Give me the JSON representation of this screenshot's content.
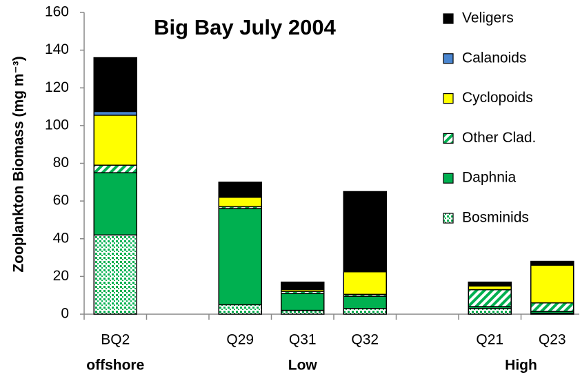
{
  "chart_data": {
    "type": "stacked_bar",
    "title": "Big Bay July 2004",
    "y_label": "Zooplankton Biomass (mg m⁻³)",
    "categories": [
      "BQ2",
      null,
      "Q29",
      "Q31",
      "Q32",
      null,
      "Q21",
      "Q23"
    ],
    "groups": [
      {
        "label": "offshore",
        "first": "BQ2",
        "last": "BQ2"
      },
      {
        "label": "Low",
        "first": "Q29",
        "last": "Q32"
      },
      {
        "label": "High",
        "first": "Q21",
        "last": "Q23"
      }
    ],
    "series": [
      {
        "name": "Bosminids",
        "color": "#00b050",
        "pattern": "dots",
        "values": [
          42,
          null,
          5,
          2,
          3,
          null,
          3,
          0.5
        ]
      },
      {
        "name": "Daphnia",
        "color": "#00b050",
        "pattern": "solid",
        "values": [
          33,
          null,
          51,
          9,
          6.5,
          null,
          1,
          1
        ]
      },
      {
        "name": "Other Clad.",
        "color": "#00b050",
        "pattern": "stripes",
        "values": [
          4,
          null,
          1,
          1,
          1,
          null,
          9,
          4.5
        ]
      },
      {
        "name": "Cyclopoids",
        "color": "#ffff00",
        "pattern": "solid",
        "values": [
          26.5,
          null,
          5,
          1,
          12,
          null,
          2,
          20
        ]
      },
      {
        "name": "Calanoids",
        "color": "#4a86d0",
        "pattern": "solid",
        "values": [
          2,
          null,
          0,
          0,
          0,
          null,
          0,
          0
        ]
      },
      {
        "name": "Veligers",
        "color": "#000000",
        "pattern": "solid",
        "values": [
          28.5,
          null,
          8,
          4,
          42.5,
          null,
          2,
          2
        ]
      }
    ],
    "ylim": [
      0,
      160
    ],
    "yticks": [
      0,
      20,
      40,
      60,
      80,
      100,
      120,
      140,
      160
    ],
    "grid": false,
    "legend": "right"
  }
}
